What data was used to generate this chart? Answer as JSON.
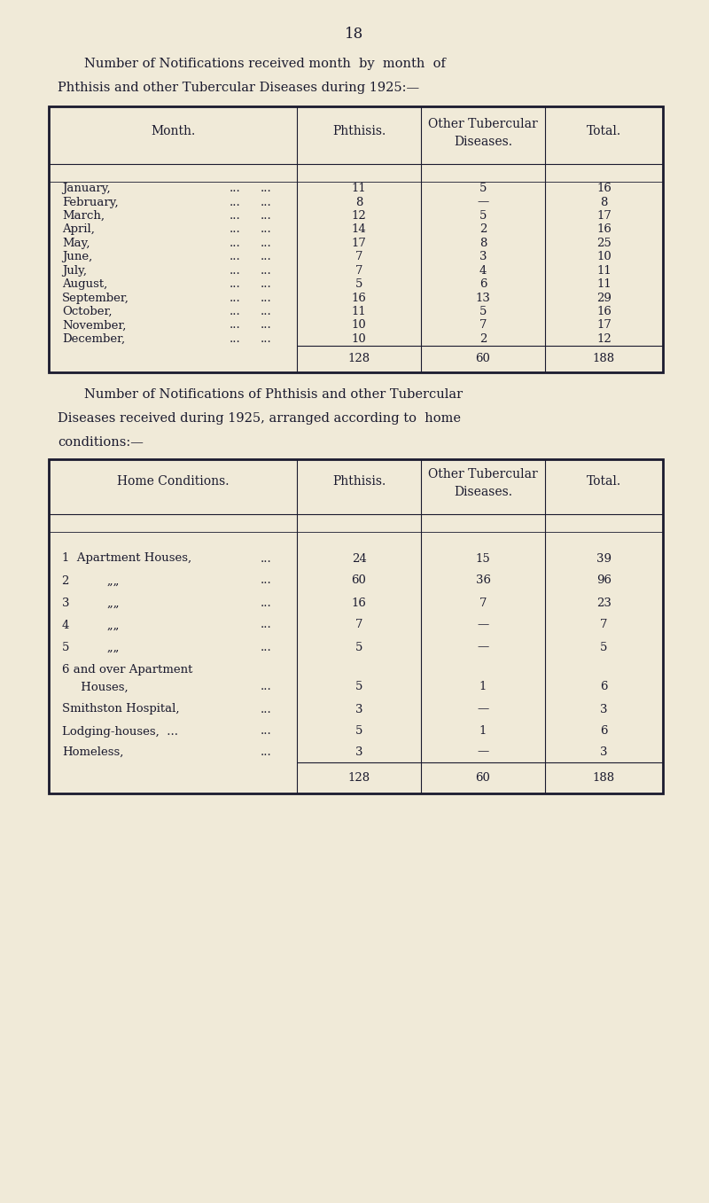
{
  "page_number": "18",
  "bg_color": "#f0ead8",
  "text_color": "#1a1a2e",
  "title1_line1": "Number of Notifications received month  by  month  of",
  "title1_line2": "Phthisis and other Tubercular Diseases during 1925:—",
  "title2_line1": "Number of Notifications of Phthisis and other Tubercular",
  "title2_line2": "Diseases received during 1925, arranged according to  home",
  "title2_line3": "conditions:—",
  "table1_months": [
    "January,",
    "February,",
    "March,",
    "April,",
    "May,",
    "June,",
    "July,",
    "August,",
    "September,",
    "October,",
    "November,",
    "December,"
  ],
  "table1_phthisis": [
    "11",
    "8",
    "12",
    "14",
    "17",
    "7",
    "7",
    "5",
    "16",
    "11",
    "10",
    "10"
  ],
  "table1_other": [
    "5",
    "—",
    "5",
    "2",
    "8",
    "3",
    "4",
    "6",
    "13",
    "5",
    "7",
    "2"
  ],
  "table1_total": [
    "16",
    "8",
    "17",
    "16",
    "25",
    "10",
    "11",
    "11",
    "29",
    "16",
    "17",
    "12"
  ],
  "table1_sum": [
    "128",
    "60",
    "188"
  ],
  "table2_labels": [
    "1  Apartment Houses,",
    "2          „„",
    "3          „„",
    "4          „„",
    "5          „„",
    "6 and over Apartment",
    "     Houses,",
    "Smithston Hospital,",
    "Lodging-houses,  ...",
    "Homeless,"
  ],
  "table2_phthisis": [
    "24",
    "60",
    "16",
    "7",
    "5",
    "",
    "5",
    "3",
    "5",
    "3"
  ],
  "table2_other": [
    "15",
    "36",
    "7",
    "—",
    "—",
    "",
    "1",
    "—",
    "1",
    "—"
  ],
  "table2_total": [
    "39",
    "96",
    "23",
    "7",
    "5",
    "",
    "6",
    "3",
    "6",
    "3"
  ],
  "table2_sum": [
    "128",
    "60",
    "188"
  ]
}
